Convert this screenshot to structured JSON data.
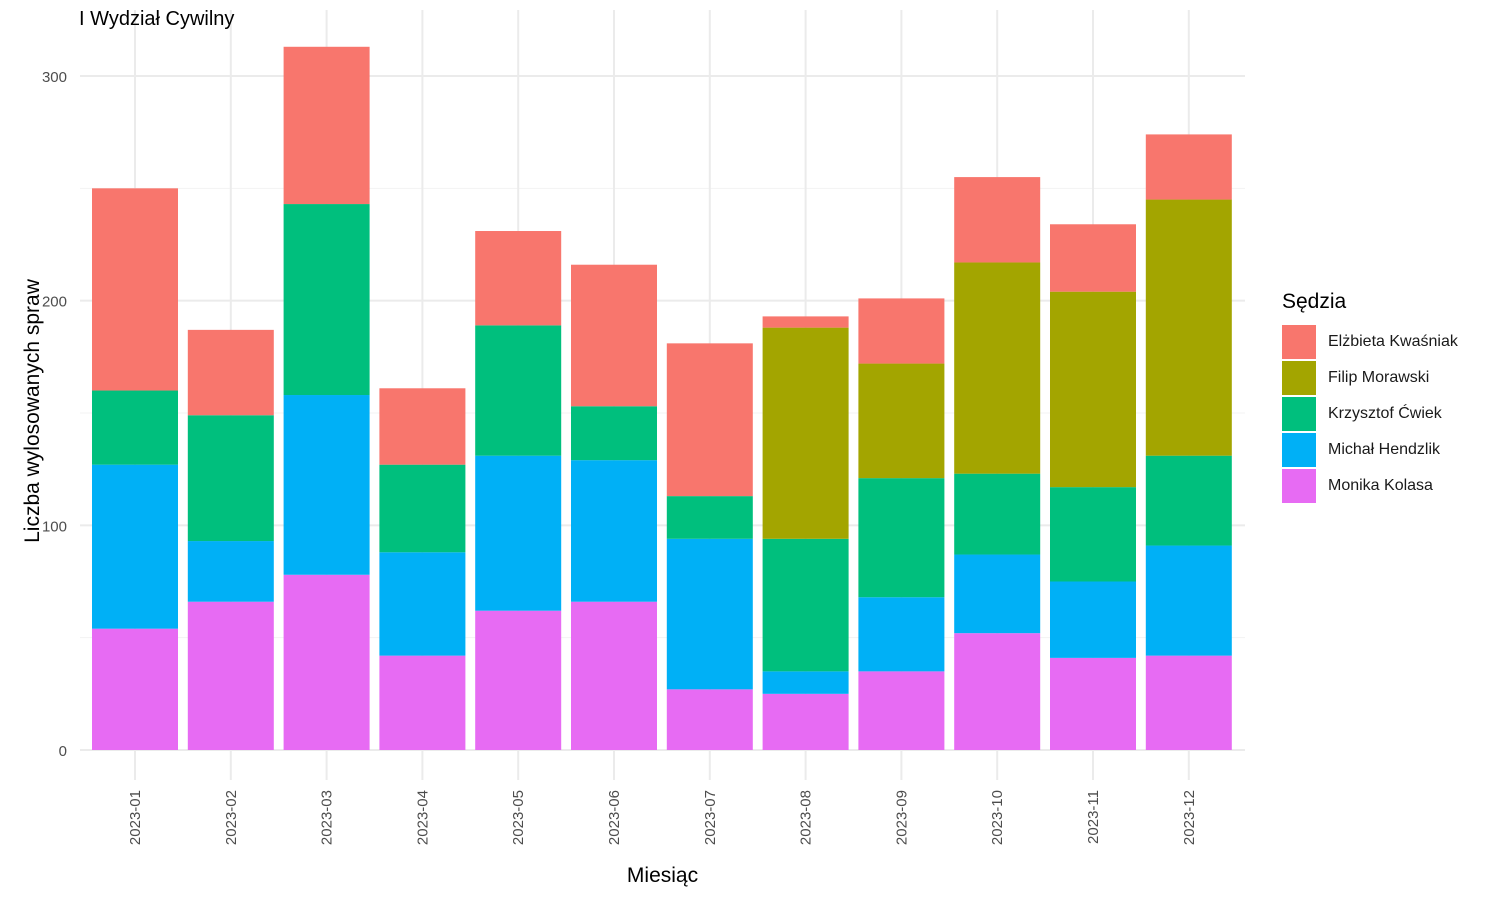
{
  "chart_data": {
    "type": "bar",
    "stacked": true,
    "title": "I Wydział Cywilny",
    "xlabel": "Miesiąc",
    "ylabel": "Liczba wylosowanych spraw",
    "ylim": [
      0,
      320
    ],
    "yticks": [
      0,
      100,
      200,
      300
    ],
    "grid": true,
    "legend_title": "Sędzia",
    "legend_position": "right",
    "categories": [
      "2023-01",
      "2023-02",
      "2023-03",
      "2023-04",
      "2023-05",
      "2023-06",
      "2023-07",
      "2023-08",
      "2023-09",
      "2023-10",
      "2023-11",
      "2023-12"
    ],
    "series": [
      {
        "name": "Monika Kolasa",
        "color": "#E76BF3",
        "values": [
          54,
          66,
          78,
          42,
          62,
          66,
          27,
          25,
          35,
          52,
          41,
          42
        ]
      },
      {
        "name": "Michał Hendzlik",
        "color": "#00B0F6",
        "values": [
          73,
          27,
          80,
          46,
          69,
          63,
          67,
          10,
          33,
          35,
          34,
          49
        ]
      },
      {
        "name": "Krzysztof Ćwiek",
        "color": "#00BF7D",
        "values": [
          33,
          56,
          85,
          39,
          58,
          24,
          19,
          59,
          53,
          36,
          42,
          40
        ]
      },
      {
        "name": "Filip Morawski",
        "color": "#A3A500",
        "values": [
          0,
          0,
          0,
          0,
          0,
          0,
          0,
          94,
          51,
          94,
          87,
          114
        ]
      },
      {
        "name": "Elżbieta Kwaśniak",
        "color": "#F8766D",
        "values": [
          90,
          38,
          70,
          34,
          42,
          63,
          68,
          5,
          29,
          38,
          30,
          29
        ]
      }
    ],
    "legend_order": [
      "Elżbieta Kwaśniak",
      "Filip Morawski",
      "Krzysztof Ćwiek",
      "Michał Hendzlik",
      "Monika Kolasa"
    ]
  }
}
